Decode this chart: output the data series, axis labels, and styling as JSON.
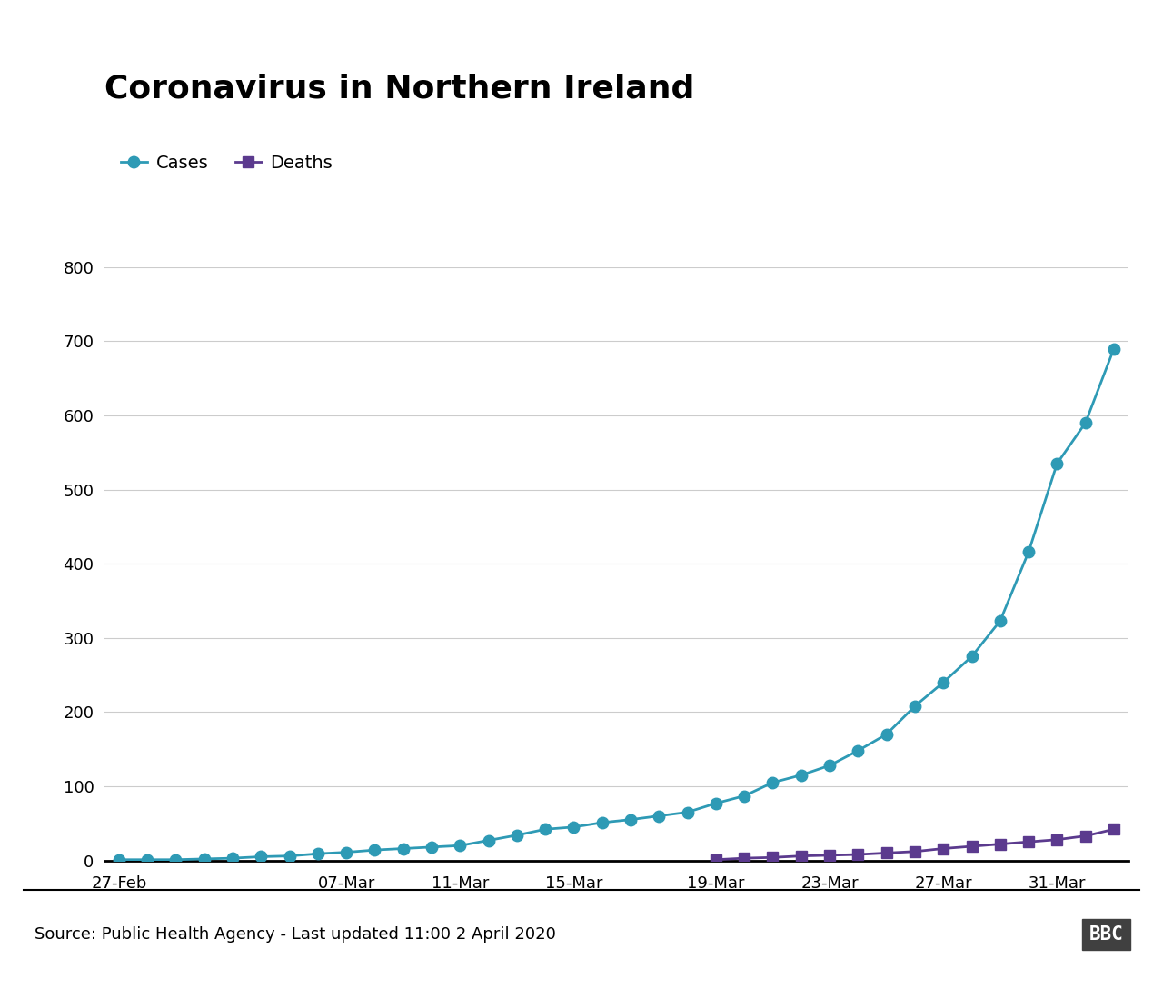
{
  "title": "Coronavirus in Northern Ireland",
  "cases_x": [
    0,
    1,
    2,
    3,
    4,
    5,
    6,
    7,
    8,
    9,
    10,
    11,
    12,
    13,
    14,
    15,
    16,
    17,
    18,
    19,
    20,
    21,
    22,
    23,
    24,
    25,
    26,
    27,
    28,
    29,
    30,
    31,
    32,
    33,
    34,
    35
  ],
  "cases_values": [
    1,
    1,
    1,
    2,
    3,
    5,
    6,
    9,
    11,
    14,
    16,
    18,
    20,
    27,
    34,
    42,
    45,
    51,
    55,
    60,
    65,
    77,
    87,
    105,
    115,
    128,
    148,
    170,
    208,
    240,
    275,
    323,
    416,
    535,
    590,
    690
  ],
  "deaths_x": [
    21,
    22,
    23,
    24,
    25,
    26,
    27,
    28,
    29,
    30,
    31,
    32,
    33,
    34,
    35
  ],
  "deaths_values": [
    1,
    3,
    4,
    6,
    7,
    8,
    10,
    12,
    16,
    19,
    22,
    25,
    28,
    33,
    42
  ],
  "cases_color": "#2E9AB5",
  "deaths_color": "#5B3A8E",
  "background_color": "#ffffff",
  "yticks": [
    0,
    100,
    200,
    300,
    400,
    500,
    600,
    700,
    800
  ],
  "xtick_positions": [
    0,
    8,
    12,
    16,
    21,
    25,
    29,
    33
  ],
  "xtick_labels": [
    "27-Feb",
    "07-Mar",
    "11-Mar",
    "15-Mar",
    "19-Mar",
    "23-Mar",
    "27-Mar",
    "31-Mar"
  ],
  "ylabel_fontsize": 13,
  "xlabel_fontsize": 13,
  "title_fontsize": 26,
  "legend_fontsize": 14,
  "source_text": "Source: Public Health Agency - Last updated 11:00 2 April 2020",
  "bbc_text": "BBC",
  "ylim": [
    0,
    800
  ],
  "xlim": [
    -0.5,
    35.5
  ],
  "line_width": 2.0,
  "cases_marker": "o",
  "deaths_marker": "s",
  "cases_marker_size": 9,
  "deaths_marker_size": 8
}
